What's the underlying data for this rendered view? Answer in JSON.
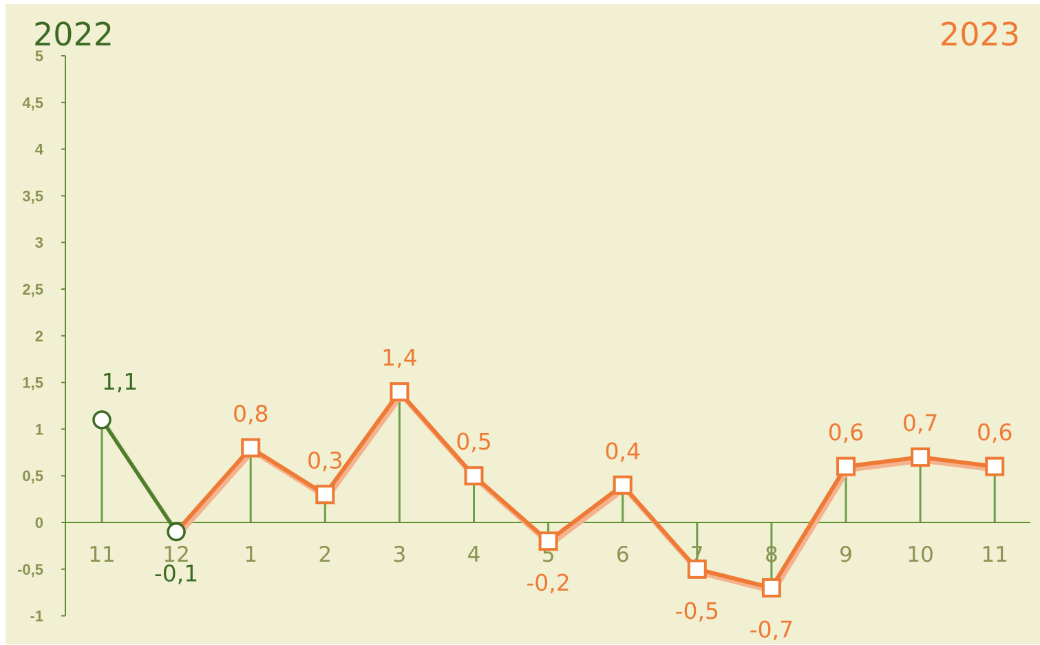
{
  "labels": {
    "year_left": "2022",
    "year_right": "2023"
  },
  "colors": {
    "background": "#f2f0d2",
    "axis": "#5e8f2f",
    "tick_text": "#8b9252",
    "series_2022": "#3c6a24",
    "series_2023": "#ee7a35",
    "shadow": "#f4b28e",
    "drop_line": "#4c8b2a"
  },
  "chart_data": {
    "type": "line",
    "x": [
      "11",
      "12",
      "1",
      "2",
      "3",
      "4",
      "5",
      "6",
      "7",
      "8",
      "9",
      "10",
      "11"
    ],
    "ylim": [
      -1,
      5
    ],
    "yticks": [
      "-1",
      "-0,5",
      "0",
      "0,5",
      "1",
      "1,5",
      "2",
      "2,5",
      "3",
      "3,5",
      "4",
      "4,5",
      "5"
    ],
    "ytick_values": [
      -1,
      -0.5,
      0,
      0.5,
      1,
      1.5,
      2,
      2.5,
      3,
      3.5,
      4,
      4.5,
      5
    ],
    "grid": false,
    "series": [
      {
        "name": "2022",
        "values": [
          1.1,
          -0.1,
          null,
          null,
          null,
          null,
          null,
          null,
          null,
          null,
          null,
          null,
          null
        ],
        "labels": [
          "1,1",
          "-0,1",
          "",
          "",
          "",
          "",
          "",
          "",
          "",
          "",
          "",
          "",
          ""
        ],
        "marker": "circle"
      },
      {
        "name": "2023",
        "values": [
          null,
          -0.1,
          0.8,
          0.3,
          1.4,
          0.5,
          -0.2,
          0.4,
          -0.5,
          -0.7,
          0.6,
          0.7,
          0.6
        ],
        "labels": [
          "",
          "",
          "0,8",
          "0,3",
          "1,4",
          "0,5",
          "-0,2",
          "0,4",
          "-0,5",
          "-0,7",
          "0,6",
          "0,7",
          "0,6"
        ],
        "marker": "square"
      }
    ]
  }
}
